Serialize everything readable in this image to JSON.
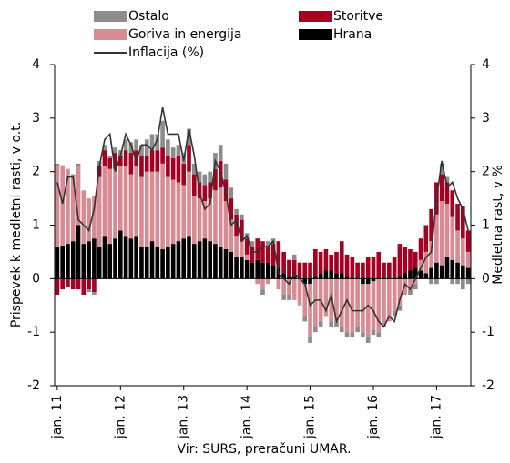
{
  "chart_data": {
    "type": "bar",
    "source": "Vir: SURS, preračuni UMAR.",
    "ylabel": "Prispevek k medletni rasti, v o.t.",
    "y2label": "Medletna rast, v %",
    "categories": [
      "jan. 11",
      null,
      null,
      null,
      null,
      null,
      null,
      null,
      null,
      null,
      null,
      null,
      "jan. 12",
      null,
      null,
      null,
      null,
      null,
      null,
      null,
      null,
      null,
      null,
      null,
      "jan. 13",
      null,
      null,
      null,
      null,
      null,
      null,
      null,
      null,
      null,
      null,
      null,
      "jan. 14",
      null,
      null,
      null,
      null,
      null,
      null,
      null,
      null,
      null,
      null,
      null,
      "jan. 15",
      null,
      null,
      null,
      null,
      null,
      null,
      null,
      null,
      null,
      null,
      null,
      "jan. 16",
      null,
      null,
      null,
      null,
      null,
      null,
      null,
      null,
      null,
      null,
      null,
      "jan. 17",
      null,
      null,
      null,
      null,
      null,
      null
    ],
    "ylim": [
      -2,
      4
    ],
    "yticks": [
      -2,
      -1,
      0,
      1,
      2,
      3,
      4
    ],
    "y2lim": [
      -2,
      4
    ],
    "y2ticks": [
      -2,
      -1,
      0,
      1,
      2,
      3,
      4
    ],
    "series": [
      {
        "name": "Hrana",
        "color": "#000000",
        "values": [
          0.6,
          0.62,
          0.65,
          0.7,
          1.0,
          0.65,
          0.7,
          0.75,
          0.6,
          0.8,
          0.65,
          0.75,
          0.9,
          0.8,
          0.75,
          0.8,
          0.6,
          0.6,
          0.7,
          0.6,
          0.55,
          0.6,
          0.65,
          0.7,
          0.75,
          0.8,
          0.65,
          0.7,
          0.75,
          0.7,
          0.65,
          0.6,
          0.55,
          0.5,
          0.4,
          0.4,
          0.35,
          0.3,
          0.35,
          0.3,
          0.3,
          0.25,
          0.2,
          0.1,
          0.05,
          0.05,
          0.0,
          -0.1,
          -0.1,
          0.05,
          0.1,
          0.15,
          0.15,
          0.1,
          0.1,
          0.05,
          0.0,
          0.0,
          -0.1,
          -0.1,
          -0.05,
          0.0,
          0.0,
          0.0,
          0.0,
          0.05,
          0.1,
          0.15,
          0.2,
          0.15,
          0.1,
          0.2,
          0.3,
          0.25,
          0.4,
          0.35,
          0.3,
          0.25,
          0.2
        ]
      },
      {
        "name": "Goriva in energija",
        "color": "#d98b94",
        "values": [
          1.5,
          1.5,
          1.4,
          1.2,
          1.1,
          1.0,
          0.8,
          0.8,
          1.3,
          1.3,
          1.4,
          1.3,
          1.2,
          1.3,
          1.2,
          1.3,
          1.3,
          1.4,
          1.3,
          1.4,
          1.6,
          1.3,
          1.2,
          1.1,
          1.0,
          1.2,
          0.9,
          0.8,
          0.7,
          0.8,
          1.0,
          1.1,
          0.9,
          0.6,
          0.4,
          0.3,
          0.1,
          0.0,
          -0.1,
          -0.2,
          -0.1,
          0.0,
          -0.2,
          -0.3,
          -0.3,
          -0.4,
          -0.5,
          -0.6,
          -1.0,
          -0.9,
          -0.8,
          -0.7,
          -0.8,
          -0.8,
          -0.9,
          -1.0,
          -1.0,
          -0.9,
          -0.9,
          -1.0,
          -0.9,
          -1.0,
          -0.9,
          -0.8,
          -0.6,
          -0.5,
          -0.3,
          -0.2,
          -0.1,
          0.2,
          0.4,
          0.5,
          0.9,
          1.2,
          1.0,
          0.8,
          0.6,
          0.5,
          0.3
        ]
      },
      {
        "name": "Storitve",
        "color": "#a50021",
        "values": [
          -0.3,
          -0.2,
          -0.15,
          -0.2,
          -0.2,
          -0.3,
          -0.2,
          -0.25,
          0.2,
          0.3,
          0.2,
          0.3,
          0.2,
          0.3,
          0.4,
          0.3,
          0.4,
          0.3,
          0.4,
          0.4,
          0.3,
          0.4,
          0.4,
          0.5,
          0.4,
          0.5,
          0.4,
          0.3,
          0.3,
          0.3,
          0.4,
          0.5,
          0.4,
          0.4,
          0.4,
          0.4,
          0.3,
          0.3,
          0.4,
          0.4,
          0.3,
          0.4,
          0.5,
          0.4,
          0.3,
          0.3,
          0.3,
          0.3,
          0.3,
          0.5,
          0.4,
          0.4,
          0.3,
          0.4,
          0.6,
          0.4,
          0.4,
          0.3,
          0.3,
          0.4,
          0.4,
          0.5,
          0.3,
          0.3,
          0.4,
          0.6,
          0.5,
          0.4,
          0.3,
          0.4,
          0.5,
          0.6,
          0.6,
          0.5,
          0.4,
          0.5,
          0.5,
          0.6,
          0.4
        ]
      },
      {
        "name": "Ostalo",
        "color": "#8c8c8c",
        "values": [
          0.05,
          0.0,
          0.0,
          0.05,
          0.05,
          0.0,
          -0.05,
          -0.05,
          0.1,
          0.1,
          0.05,
          0.1,
          0.1,
          0.2,
          0.2,
          0.2,
          0.2,
          0.3,
          0.3,
          0.3,
          0.5,
          0.3,
          0.2,
          0.2,
          0.2,
          0.3,
          0.2,
          0.2,
          0.2,
          0.2,
          0.3,
          0.3,
          0.3,
          0.2,
          0.1,
          0.1,
          0.1,
          0.1,
          0.0,
          -0.1,
          0.1,
          0.1,
          0.0,
          -0.1,
          -0.1,
          0.1,
          0.0,
          -0.1,
          -0.1,
          -0.1,
          -0.1,
          0.0,
          -0.1,
          -0.1,
          -0.1,
          -0.1,
          -0.1,
          -0.1,
          -0.1,
          -0.1,
          -0.1,
          -0.1,
          0.0,
          0.0,
          -0.1,
          -0.1,
          0.0,
          -0.1,
          -0.1,
          0.0,
          0.0,
          -0.1,
          -0.1,
          0.2,
          0.1,
          -0.1,
          -0.1,
          -0.2,
          -0.1
        ]
      },
      {
        "name": "Inflacija (%)",
        "type": "line",
        "axis": "y2",
        "color": "#333333",
        "values": [
          1.8,
          1.4,
          1.9,
          1.9,
          1.1,
          1.0,
          0.9,
          1.3,
          2.1,
          2.6,
          2.7,
          2.0,
          2.3,
          2.7,
          2.5,
          2.2,
          2.5,
          2.5,
          2.4,
          2.6,
          3.2,
          2.7,
          2.7,
          2.7,
          2.2,
          2.8,
          2.3,
          1.6,
          1.3,
          1.4,
          2.2,
          2.0,
          1.6,
          1.0,
          1.1,
          0.7,
          0.8,
          0.5,
          0.5,
          0.6,
          0.6,
          0.7,
          0.1,
          0.0,
          -0.1,
          0.1,
          0.0,
          -0.1,
          -0.5,
          -0.4,
          -0.4,
          -0.6,
          -0.3,
          -0.8,
          -0.6,
          -0.4,
          -0.6,
          -0.6,
          -0.6,
          -0.5,
          -0.6,
          -0.8,
          -0.9,
          -0.7,
          -0.8,
          -0.4,
          -0.1,
          -0.2,
          0.0,
          0.2,
          0.4,
          0.5,
          1.5,
          2.2,
          1.7,
          1.8,
          1.5,
          1.3,
          0.9
        ]
      }
    ]
  }
}
